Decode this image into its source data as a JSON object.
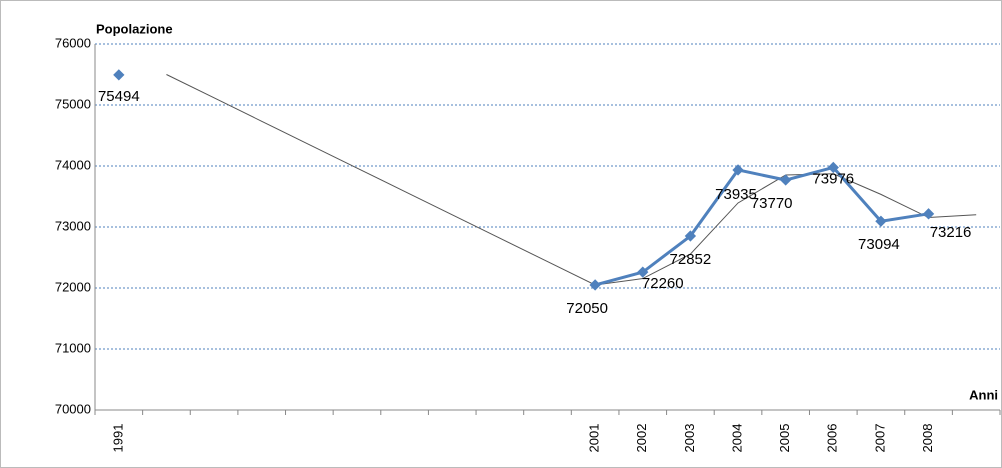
{
  "chart_data": {
    "type": "line",
    "y_label": "Popolazione",
    "x_label": "Anni",
    "categories": [
      "1991",
      null,
      null,
      null,
      null,
      null,
      null,
      null,
      null,
      null,
      "2001",
      "2002",
      "2003",
      "2004",
      "2005",
      "2006",
      "2007",
      "2008",
      null
    ],
    "series": [
      {
        "color": "#4f81bd",
        "values": [
          75494,
          null,
          null,
          null,
          null,
          null,
          null,
          null,
          null,
          null,
          72050,
          72260,
          72852,
          73935,
          73770,
          73976,
          73094,
          73216,
          null
        ]
      },
      {
        "color": "#555555",
        "values": [
          null,
          75500,
          75117,
          74733,
          74350,
          73967,
          73583,
          73200,
          72817,
          72433,
          72050,
          72155,
          72556,
          73394,
          73853,
          73873,
          73535,
          73155,
          73200
        ]
      }
    ],
    "ylim": [
      70000,
      76000
    ],
    "yticks": [
      70000,
      71000,
      72000,
      73000,
      74000,
      75000,
      76000
    ],
    "grid": true
  }
}
